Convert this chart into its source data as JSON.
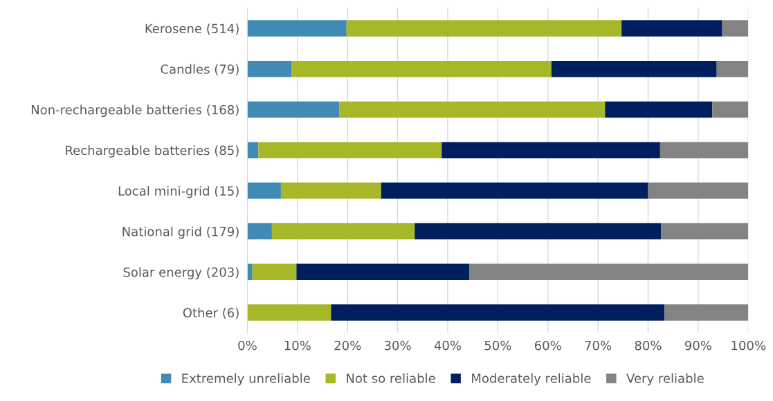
{
  "chart_data": {
    "type": "bar",
    "orientation": "horizontal",
    "stacked": true,
    "categories": [
      "Kerosene (514)",
      "Candles (79)",
      "Non-rechargeable batteries (168)",
      "Rechargeable batteries (85)",
      "Local mini-grid (15)",
      "National grid (179)",
      "Solar energy (203)",
      "Other (6)"
    ],
    "series": [
      {
        "name": "Extremely unreliable",
        "color": "#418ab3",
        "values": [
          19.8,
          8.8,
          18.4,
          2.2,
          6.7,
          4.9,
          1.0,
          0
        ]
      },
      {
        "name": "Not so reliable",
        "color": "#a6b727",
        "values": [
          54.9,
          51.9,
          53.0,
          36.6,
          20.0,
          28.5,
          8.8,
          16.7
        ]
      },
      {
        "name": "Moderately reliable",
        "color": "#001f5f",
        "values": [
          20.1,
          33.0,
          21.4,
          43.6,
          53.3,
          49.2,
          34.5,
          66.6
        ]
      },
      {
        "name": "Very reliable",
        "color": "#838383",
        "values": [
          5.2,
          6.3,
          7.2,
          17.6,
          20.0,
          17.4,
          55.7,
          16.7
        ]
      }
    ],
    "xlim": [
      0,
      100
    ],
    "xticks": [
      {
        "value": 0,
        "label": "0%"
      },
      {
        "value": 10,
        "label": "10%"
      },
      {
        "value": 20,
        "label": "20%"
      },
      {
        "value": 30,
        "label": "30%"
      },
      {
        "value": 40,
        "label": "40%"
      },
      {
        "value": 50,
        "label": "50%"
      },
      {
        "value": 60,
        "label": "60%"
      },
      {
        "value": 70,
        "label": "70%"
      },
      {
        "value": 80,
        "label": "80%"
      },
      {
        "value": 90,
        "label": "90%"
      },
      {
        "value": 100,
        "label": "100%"
      }
    ],
    "grid": "x",
    "legend": "bottom"
  }
}
